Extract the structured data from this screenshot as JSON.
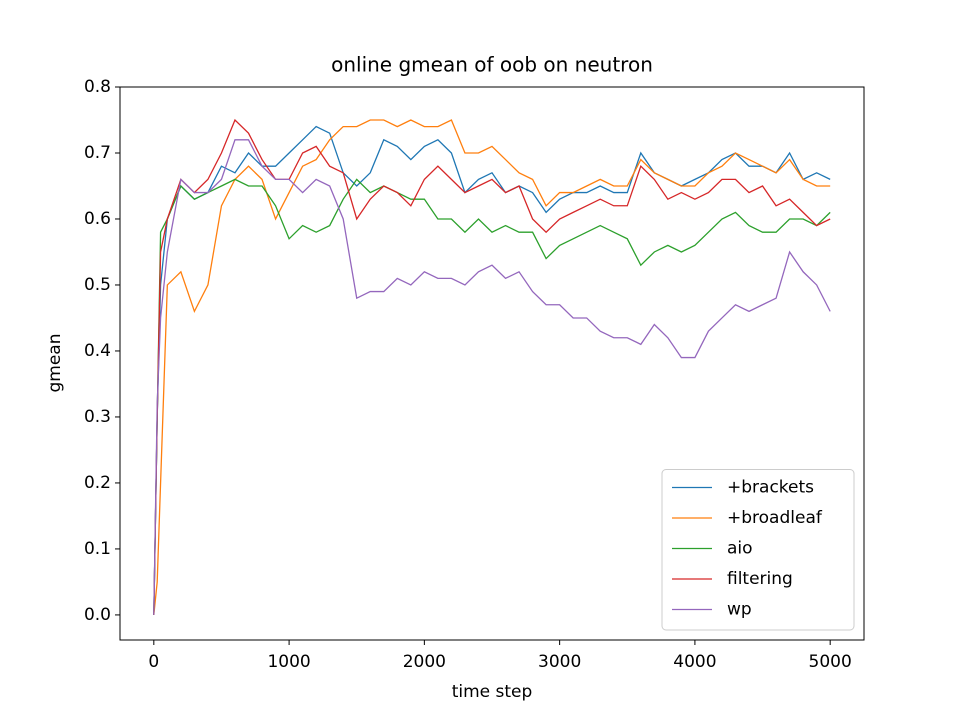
{
  "chart_data": {
    "type": "line",
    "title": "online gmean of oob on neutron",
    "x_label": "time step",
    "y_label": "gmean",
    "xlim": [
      -250,
      5250
    ],
    "ylim": [
      -0.038,
      0.8
    ],
    "xticks": [
      0,
      1000,
      2000,
      3000,
      4000,
      5000
    ],
    "yticks": [
      {
        "value": 0,
        "label": "0.0"
      },
      0.1,
      0.2,
      0.3,
      0.4,
      0.5,
      0.6,
      0.7,
      0.8
    ],
    "legend": "lower right",
    "x": [
      0,
      25,
      50,
      100,
      200,
      300,
      400,
      500,
      600,
      700,
      800,
      900,
      1000,
      1100,
      1200,
      1300,
      1400,
      1500,
      1600,
      1700,
      1800,
      1900,
      2000,
      2100,
      2200,
      2300,
      2400,
      2500,
      2600,
      2700,
      2800,
      2900,
      3000,
      3100,
      3200,
      3300,
      3400,
      3500,
      3600,
      3700,
      3800,
      3900,
      4000,
      4100,
      4200,
      4300,
      4400,
      4500,
      4600,
      4700,
      4800,
      4900,
      5000
    ],
    "series": [
      {
        "name": "+brackets",
        "color": "#1f77b4",
        "values": [
          0,
          0.3,
          0.5,
          0.6,
          0.65,
          0.63,
          0.64,
          0.68,
          0.67,
          0.7,
          0.68,
          0.68,
          0.7,
          0.72,
          0.74,
          0.73,
          0.67,
          0.65,
          0.67,
          0.72,
          0.71,
          0.69,
          0.71,
          0.72,
          0.7,
          0.64,
          0.66,
          0.67,
          0.64,
          0.65,
          0.64,
          0.61,
          0.63,
          0.64,
          0.64,
          0.65,
          0.64,
          0.64,
          0.7,
          0.67,
          0.66,
          0.65,
          0.66,
          0.67,
          0.69,
          0.7,
          0.68,
          0.68,
          0.67,
          0.7,
          0.66,
          0.67,
          0.66
        ]
      },
      {
        "name": "+broadleaf",
        "color": "#ff7f0e",
        "values": [
          0,
          0.05,
          0.2,
          0.5,
          0.52,
          0.46,
          0.5,
          0.62,
          0.66,
          0.68,
          0.66,
          0.6,
          0.64,
          0.68,
          0.69,
          0.72,
          0.74,
          0.74,
          0.75,
          0.75,
          0.74,
          0.75,
          0.74,
          0.74,
          0.75,
          0.7,
          0.7,
          0.71,
          0.69,
          0.67,
          0.66,
          0.62,
          0.64,
          0.64,
          0.65,
          0.66,
          0.65,
          0.65,
          0.69,
          0.67,
          0.66,
          0.65,
          0.65,
          0.67,
          0.68,
          0.7,
          0.69,
          0.68,
          0.67,
          0.69,
          0.66,
          0.65,
          0.65
        ]
      },
      {
        "name": "aio",
        "color": "#2ca02c",
        "values": [
          0,
          0.3,
          0.58,
          0.6,
          0.65,
          0.63,
          0.64,
          0.65,
          0.66,
          0.65,
          0.65,
          0.62,
          0.57,
          0.59,
          0.58,
          0.59,
          0.63,
          0.66,
          0.64,
          0.65,
          0.64,
          0.63,
          0.63,
          0.6,
          0.6,
          0.58,
          0.6,
          0.58,
          0.59,
          0.58,
          0.58,
          0.54,
          0.56,
          0.57,
          0.58,
          0.59,
          0.58,
          0.57,
          0.53,
          0.55,
          0.56,
          0.55,
          0.56,
          0.58,
          0.6,
          0.61,
          0.59,
          0.58,
          0.58,
          0.6,
          0.6,
          0.59,
          0.61
        ]
      },
      {
        "name": "filtering",
        "color": "#d62728",
        "values": [
          0,
          0.3,
          0.55,
          0.6,
          0.66,
          0.64,
          0.66,
          0.7,
          0.75,
          0.73,
          0.69,
          0.66,
          0.66,
          0.7,
          0.71,
          0.68,
          0.67,
          0.6,
          0.63,
          0.65,
          0.64,
          0.62,
          0.66,
          0.68,
          0.66,
          0.64,
          0.65,
          0.66,
          0.64,
          0.65,
          0.6,
          0.58,
          0.6,
          0.61,
          0.62,
          0.63,
          0.62,
          0.62,
          0.68,
          0.66,
          0.63,
          0.64,
          0.63,
          0.64,
          0.66,
          0.66,
          0.64,
          0.65,
          0.62,
          0.63,
          0.61,
          0.59,
          0.6
        ]
      },
      {
        "name": "wp",
        "color": "#9467bd",
        "values": [
          0,
          0.32,
          0.45,
          0.55,
          0.66,
          0.64,
          0.64,
          0.66,
          0.72,
          0.72,
          0.68,
          0.66,
          0.66,
          0.64,
          0.66,
          0.65,
          0.6,
          0.48,
          0.49,
          0.49,
          0.51,
          0.5,
          0.52,
          0.51,
          0.51,
          0.5,
          0.52,
          0.53,
          0.51,
          0.52,
          0.49,
          0.47,
          0.47,
          0.45,
          0.45,
          0.43,
          0.42,
          0.42,
          0.41,
          0.44,
          0.42,
          0.39,
          0.39,
          0.43,
          0.45,
          0.47,
          0.46,
          0.47,
          0.48,
          0.55,
          0.52,
          0.5,
          0.46
        ]
      }
    ]
  }
}
